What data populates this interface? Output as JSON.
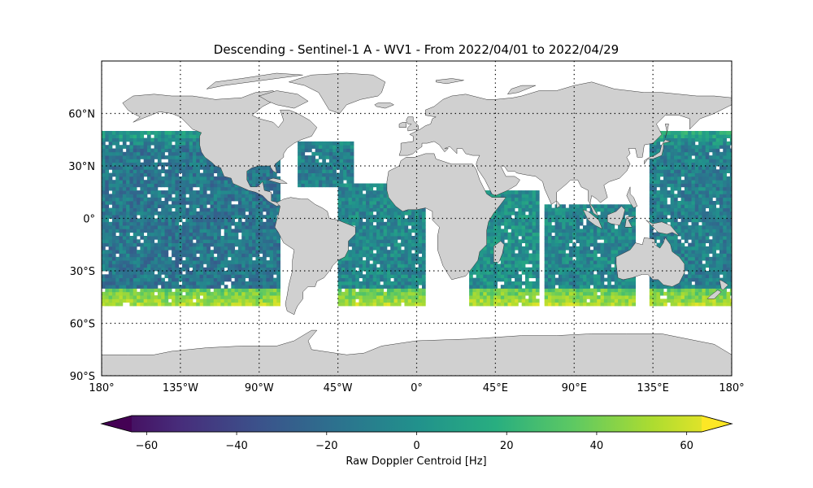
{
  "title": "Descending - Sentinel-1 A - WV1 - From 2022/04/01 to 2022/04/29",
  "map": {
    "projection": "PlateCarree",
    "xlim": [
      -180,
      180
    ],
    "ylim": [
      -90,
      90
    ],
    "land_color": "#d0d0d0",
    "gridline_style": "dotted",
    "lon_ticks": [
      -180,
      -135,
      -90,
      -45,
      0,
      45,
      90,
      135,
      180
    ],
    "lon_labels": [
      "180°",
      "135°W",
      "90°W",
      "45°W",
      "0°",
      "45°E",
      "90°E",
      "135°E",
      "180°"
    ],
    "lat_ticks": [
      60,
      30,
      0,
      -30,
      -60,
      -90
    ],
    "lat_labels": [
      "60°N",
      "30°N",
      "0°",
      "30°S",
      "60°S",
      "90°S"
    ]
  },
  "colorbar": {
    "label": "Raw Doppler Centroid [Hz]",
    "colormap": "viridis",
    "vmin": -70,
    "vmax": 70,
    "extend": "both",
    "ticks": [
      -60,
      -40,
      -20,
      0,
      20,
      40,
      60
    ],
    "tick_labels": [
      "−60",
      "−40",
      "−20",
      "0",
      "20",
      "40",
      "60"
    ]
  },
  "chart_data": {
    "type": "heatmap",
    "title": "Descending - Sentinel-1 A - WV1 - From 2022/04/01 to 2022/04/29",
    "xlabel": "",
    "ylabel": "",
    "zlabel": "Raw Doppler Centroid [Hz]",
    "cell_size_deg": 2,
    "swaths": [
      {
        "lon_range": [
          -180,
          -78
        ],
        "lat_range": [
          -50,
          50
        ],
        "typical_value": -15
      },
      {
        "lon_range": [
          -68,
          -36
        ],
        "lat_range": [
          18,
          43
        ],
        "typical_value": -10
      },
      {
        "lon_range": [
          -45,
          5
        ],
        "lat_range": [
          -50,
          20
        ],
        "typical_value": -5
      },
      {
        "lon_range": [
          30,
          70
        ],
        "lat_range": [
          -50,
          15
        ],
        "typical_value": 0
      },
      {
        "lon_range": [
          73,
          125
        ],
        "lat_range": [
          -50,
          8
        ],
        "typical_value": -5
      },
      {
        "lon_range": [
          133,
          180
        ],
        "lat_range": [
          -50,
          50
        ],
        "typical_value": -10
      }
    ],
    "high_latitude_edge_values": {
      "lat_range": [
        -50,
        -40
      ],
      "value_range": [
        40,
        65
      ]
    }
  }
}
